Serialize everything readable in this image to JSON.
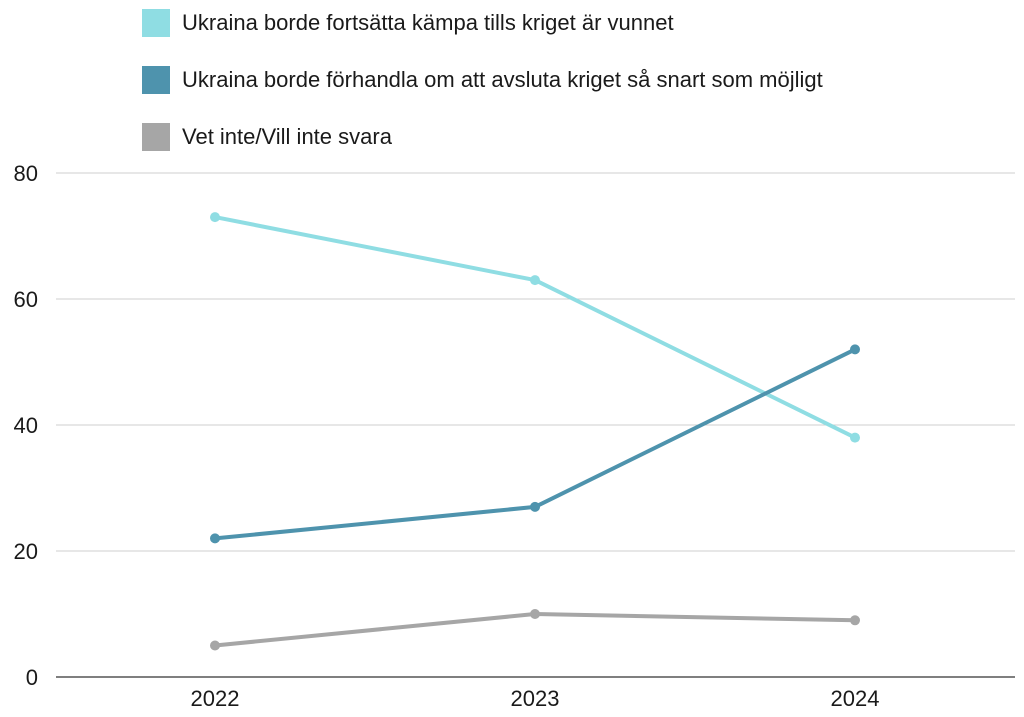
{
  "chart_data": {
    "type": "line",
    "title": "",
    "xlabel": "",
    "ylabel": "",
    "categories": [
      "2022",
      "2023",
      "2024"
    ],
    "ylim": [
      0,
      80
    ],
    "yticks": [
      0,
      20,
      40,
      60,
      80
    ],
    "grid": true,
    "legend_position": "top",
    "series": [
      {
        "name": "Ukraina borde fortsätta kämpa tills kriget är vunnet",
        "color": "#8fdde3",
        "values": [
          73,
          63,
          38
        ]
      },
      {
        "name": "Ukraina borde förhandla om att avsluta kriget så snart som möjligt",
        "color": "#4e93ad",
        "values": [
          22,
          27,
          52
        ]
      },
      {
        "name": "Vet inte/Vill inte svara",
        "color": "#a6a6a6",
        "values": [
          5,
          10,
          9
        ]
      }
    ]
  }
}
